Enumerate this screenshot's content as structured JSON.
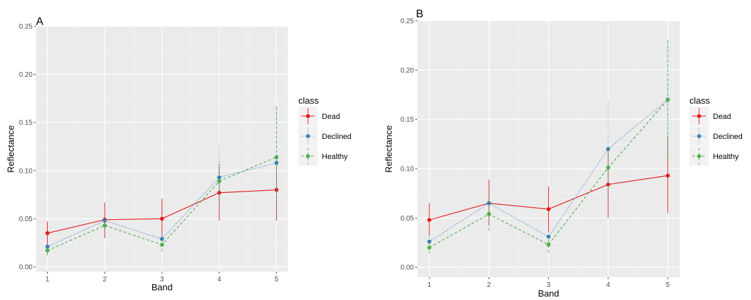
{
  "chart_data": [
    {
      "type": "line",
      "title": "A",
      "xlabel": "Band",
      "ylabel": "Reflectance",
      "x": [
        1,
        2,
        3,
        4,
        5
      ],
      "x_tick_labels": [
        "1",
        "2",
        "3",
        "4",
        "5"
      ],
      "y_tick_labels": [
        "0.00",
        "0.05",
        "0.10",
        "0.15",
        "0.20",
        "0.25"
      ],
      "xlim": [
        0.8,
        5.2
      ],
      "ylim": [
        -0.005,
        0.25
      ],
      "grid": true,
      "error_bars": true,
      "legend": {
        "title": "class",
        "position": "right",
        "entries": [
          "Dead",
          "Declined",
          "Healthy"
        ]
      },
      "series": [
        {
          "name": "Dead",
          "color": "#e41a1c",
          "line": "solid",
          "values": [
            0.035,
            0.049,
            0.05,
            0.077,
            0.08
          ],
          "err_low": [
            0.023,
            0.03,
            0.028,
            0.048,
            0.048
          ],
          "err_high": [
            0.047,
            0.067,
            0.071,
            0.107,
            0.112
          ]
        },
        {
          "name": "Declined",
          "color": "#377eb8",
          "line": "dotted",
          "values": [
            0.021,
            0.048,
            0.029,
            0.093,
            0.108
          ],
          "err_low": [
            0.015,
            0.042,
            0.022,
            0.06,
            0.05
          ],
          "err_high": [
            0.027,
            0.054,
            0.036,
            0.127,
            0.165
          ]
        },
        {
          "name": "Healthy",
          "color": "#4daf4a",
          "line": "dashed",
          "values": [
            0.017,
            0.043,
            0.023,
            0.089,
            0.114
          ],
          "err_low": [
            0.012,
            0.037,
            0.016,
            0.068,
            0.068
          ],
          "err_high": [
            0.022,
            0.049,
            0.03,
            0.11,
            0.167
          ]
        }
      ]
    },
    {
      "type": "line",
      "title": "B",
      "xlabel": "Band",
      "ylabel": "Reflectance",
      "x": [
        1,
        2,
        3,
        4,
        5
      ],
      "x_tick_labels": [
        "1",
        "2",
        "3",
        "4",
        "5"
      ],
      "y_tick_labels": [
        "0.00",
        "0.05",
        "0.10",
        "0.15",
        "0.20",
        "0.25"
      ],
      "xlim": [
        0.8,
        5.2
      ],
      "ylim": [
        -0.01,
        0.25
      ],
      "grid": true,
      "error_bars": true,
      "legend": {
        "title": "class",
        "position": "right",
        "entries": [
          "Dead",
          "Declined",
          "Healthy"
        ]
      },
      "series": [
        {
          "name": "Dead",
          "color": "#e41a1c",
          "line": "solid",
          "values": [
            0.048,
            0.065,
            0.059,
            0.084,
            0.093
          ],
          "err_low": [
            0.032,
            0.042,
            0.036,
            0.05,
            0.055
          ],
          "err_high": [
            0.065,
            0.089,
            0.082,
            0.119,
            0.133
          ]
        },
        {
          "name": "Declined",
          "color": "#377eb8",
          "line": "dotted",
          "values": [
            0.026,
            0.065,
            0.031,
            0.12,
            0.17
          ],
          "err_low": [
            0.018,
            0.06,
            0.025,
            0.07,
            0.11
          ],
          "err_high": [
            0.034,
            0.07,
            0.037,
            0.168,
            0.23
          ]
        },
        {
          "name": "Healthy",
          "color": "#4daf4a",
          "line": "dashed",
          "values": [
            0.02,
            0.054,
            0.023,
            0.101,
            0.17
          ],
          "err_low": [
            0.014,
            0.037,
            0.015,
            0.08,
            0.11
          ],
          "err_high": [
            0.026,
            0.071,
            0.031,
            0.122,
            0.23
          ]
        }
      ]
    }
  ]
}
